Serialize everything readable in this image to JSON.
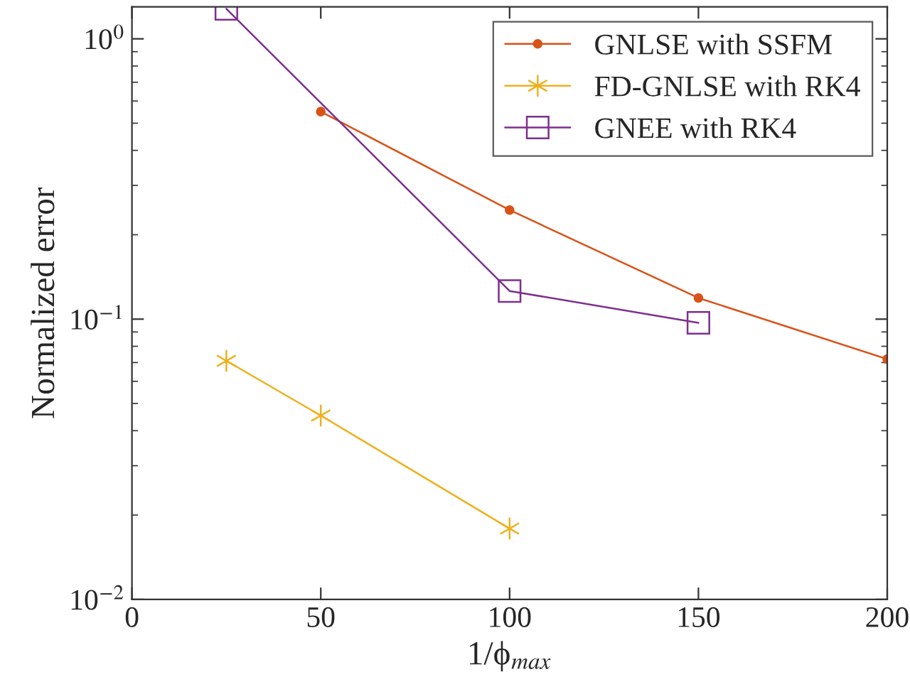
{
  "chart_data": {
    "type": "line",
    "xlabel": "1/ϕ$_{max}$",
    "ylabel": "Normalized error",
    "x": [
      25,
      50,
      100,
      150,
      200
    ],
    "series": [
      {
        "name": "GNLSE with SSFM",
        "color": "#d95319",
        "marker": "circle",
        "values": [
          null,
          0.55,
          0.245,
          0.119,
          0.072
        ]
      },
      {
        "name": "FD-GNLSE with RK4",
        "color": "#edb120",
        "marker": "cross",
        "values": [
          0.071,
          0.0453,
          0.0179,
          null,
          null
        ]
      },
      {
        "name": "GNEE with RK4",
        "color": "#7e2f8e",
        "marker": "square",
        "values": [
          1.28,
          null,
          0.126,
          0.097,
          null
        ]
      }
    ],
    "log": "y",
    "xlim": [
      0,
      200
    ],
    "ylim": [
      0.01,
      1.3
    ],
    "xticks": [
      0,
      50,
      100,
      150,
      200
    ],
    "yticks": [
      {
        "value": 0.01,
        "label": "10$^{−2}$"
      },
      {
        "value": 0.1,
        "label": "10$^{−1}$"
      },
      {
        "value": 1,
        "label": "10$^{0}$"
      }
    ],
    "grid": false,
    "legend": "top right"
  }
}
